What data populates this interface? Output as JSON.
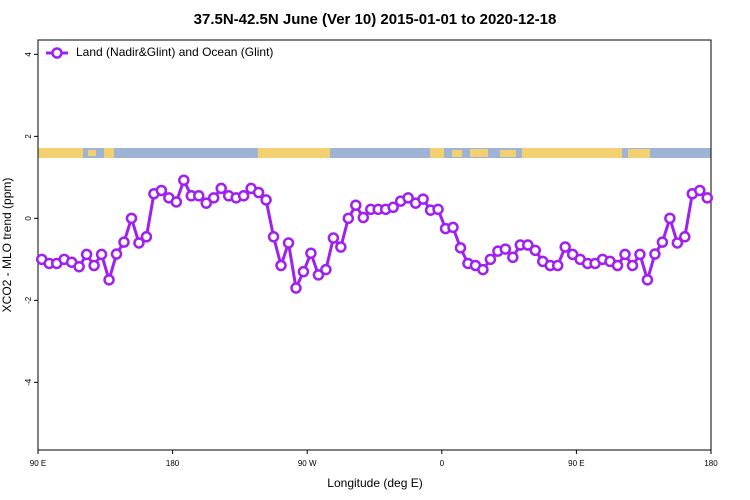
{
  "chart_data": {
    "type": "line",
    "title": "37.5N-42.5N June (Ver 10)   2015-01-01 to 2020-12-18",
    "xlabel": "Longitude (deg E)",
    "ylabel": "XCO2 - MLO trend (ppm)",
    "legend": "top-left",
    "x": [
      92.5,
      97.5,
      102.5,
      107.5,
      112.5,
      117.5,
      122.5,
      127.5,
      132.5,
      137.5,
      142.5,
      147.5,
      152.5,
      157.5,
      162.5,
      167.5,
      172.5,
      177.5,
      182.5,
      187.5,
      192.5,
      197.5,
      202.5,
      207.5,
      212.5,
      217.5,
      222.5,
      227.5,
      232.5,
      237.5,
      242.5,
      247.5,
      252.5,
      257.5,
      262.5,
      267.5,
      272.5,
      277.5,
      282.5,
      287.5,
      292.5,
      297.5,
      302.5,
      307.5,
      312.5,
      317.5,
      322.5,
      327.5,
      332.5,
      337.5,
      342.5,
      347.5,
      352.5,
      357.5,
      362.5,
      367.5,
      372.5,
      377.5,
      382.5,
      387.5,
      392.5,
      397.5,
      402.5,
      407.5,
      412.5,
      417.5,
      422.5,
      427.5,
      432.5,
      437.5,
      442.5,
      447.5,
      452.5,
      457.5,
      462.5,
      467.5,
      472.5,
      477.5,
      482.5,
      487.5,
      492.5,
      497.5,
      502.5,
      507.5,
      512.5,
      517.5,
      522.5,
      527.5,
      532.5,
      537.5
    ],
    "series": [
      {
        "name": "Land (Nadir&Glint) and Ocean (Glint)",
        "color": "#a020f0",
        "values": [
          -1.0,
          -1.1,
          -1.1,
          -1.0,
          -1.07,
          -1.18,
          -0.88,
          -1.15,
          -0.88,
          -1.5,
          -0.87,
          -0.58,
          0.0,
          -0.6,
          -0.45,
          0.6,
          0.68,
          0.5,
          0.4,
          0.93,
          0.55,
          0.55,
          0.37,
          0.5,
          0.73,
          0.55,
          0.5,
          0.55,
          0.73,
          0.63,
          0.45,
          -0.45,
          -1.15,
          -0.6,
          -1.7,
          -1.3,
          -0.85,
          -1.38,
          -1.25,
          -0.48,
          -0.7,
          0.0,
          0.32,
          0.02,
          0.22,
          0.22,
          0.22,
          0.27,
          0.42,
          0.5,
          0.37,
          0.47,
          0.2,
          0.22,
          -0.25,
          -0.22,
          -0.72,
          -1.1,
          -1.15,
          -1.25,
          -1.0,
          -0.8,
          -0.75,
          -0.95,
          -0.65,
          -0.65,
          -0.78,
          -1.05,
          -1.15,
          -1.15,
          -0.7,
          -0.88,
          -1.0,
          -1.1,
          -1.1,
          -1.0,
          -1.05,
          -1.15,
          -0.88,
          -1.15,
          -0.88,
          -1.5,
          -0.87,
          -0.58,
          0.0,
          -0.6,
          -0.45,
          0.6,
          0.68,
          0.5
        ]
      }
    ],
    "xlim": [
      90,
      540
    ],
    "xticks": [
      {
        "value": 90,
        "label": "90 E"
      },
      {
        "value": 180,
        "label": "180"
      },
      {
        "value": 270,
        "label": "90 W"
      },
      {
        "value": 360,
        "label": "0"
      },
      {
        "value": 450,
        "label": "90 E"
      },
      {
        "value": 540,
        "label": "180"
      }
    ],
    "ylim": [
      -5.65,
      4.35
    ],
    "yticks": [
      -4,
      -2,
      0,
      2,
      4
    ]
  }
}
